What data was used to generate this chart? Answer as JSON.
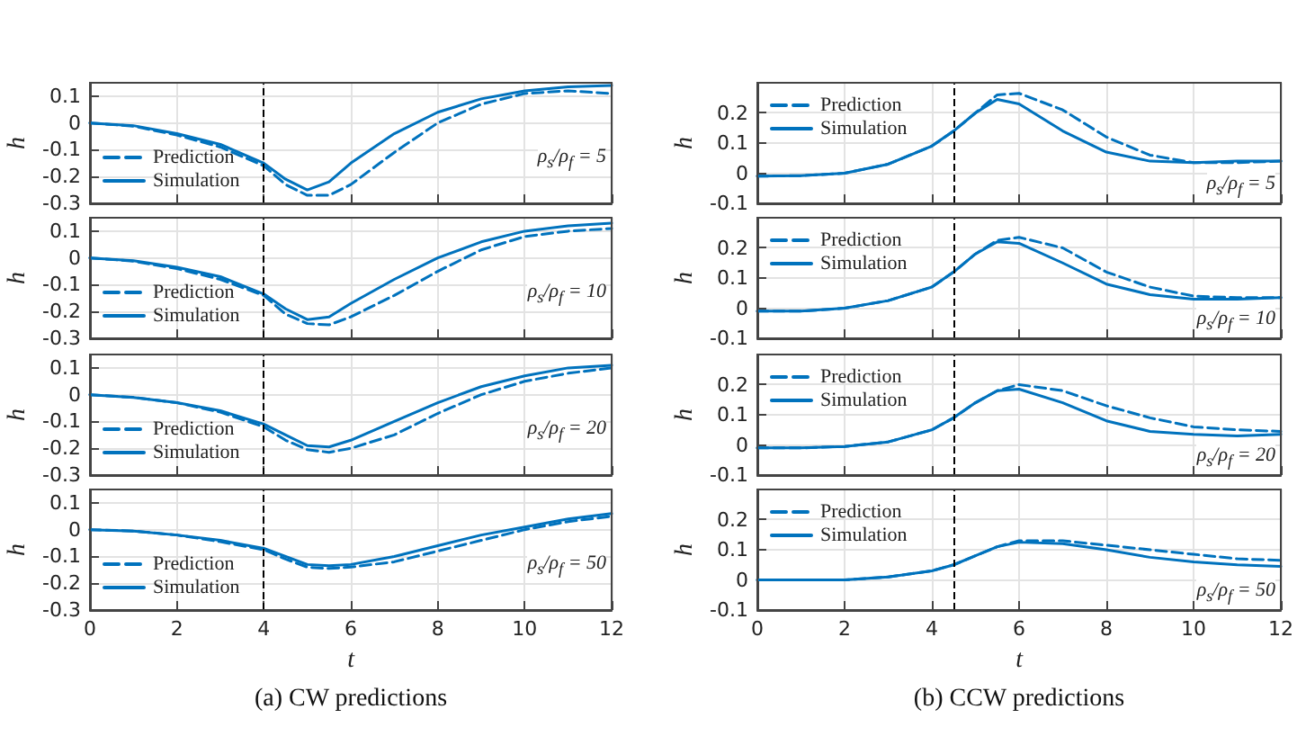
{
  "chart_data": [
    {
      "type": "line",
      "x": [
        0,
        1,
        2,
        3,
        4,
        4.5,
        5,
        5.5,
        6,
        7,
        8,
        9,
        10,
        11,
        12
      ],
      "ylabel": "h",
      "xlim": [
        0,
        12
      ],
      "xticks": [
        0,
        2,
        4,
        6,
        8,
        10,
        12
      ],
      "ylim": [
        -0.3,
        0.15
      ],
      "yticks": [
        -0.3,
        -0.2,
        -0.1,
        0,
        0.1
      ],
      "tick_labels": "y",
      "grid": true,
      "legend": "bottom left",
      "marker": "none",
      "annotations": [
        "ρ$_{s}$/ρ$_{f}$ = 5"
      ],
      "ref_lines": [
        {
          "axis": "x",
          "value": 4,
          "color": "#000000",
          "line_style": "dashed"
        }
      ],
      "series": [
        {
          "name": "Prediction",
          "color": "#0072bd",
          "line_style": "dashed",
          "values": [
            0,
            -0.012,
            -0.045,
            -0.09,
            -0.16,
            -0.23,
            -0.27,
            -0.27,
            -0.23,
            -0.11,
            0.0,
            0.07,
            0.11,
            0.12,
            0.11
          ]
        },
        {
          "name": "Simulation",
          "color": "#0072bd",
          "line_style": "solid",
          "values": [
            0,
            -0.01,
            -0.04,
            -0.08,
            -0.15,
            -0.21,
            -0.25,
            -0.22,
            -0.15,
            -0.04,
            0.04,
            0.09,
            0.12,
            0.135,
            0.14
          ]
        }
      ]
    },
    {
      "type": "line",
      "x": [
        0,
        1,
        2,
        3,
        4,
        4.5,
        5,
        5.5,
        6,
        7,
        8,
        9,
        10,
        11,
        12
      ],
      "ylabel": "h",
      "xlim": [
        0,
        12
      ],
      "xticks": [
        0,
        2,
        4,
        6,
        8,
        10,
        12
      ],
      "ylim": [
        -0.1,
        0.3
      ],
      "yticks": [
        -0.1,
        0,
        0.1,
        0.2
      ],
      "tick_labels": "y",
      "grid": true,
      "legend": "top left",
      "marker": "none",
      "annotations": [
        "ρ$_{s}$/ρ$_{f}$ = 5"
      ],
      "ref_lines": [
        {
          "axis": "x",
          "value": 4.5,
          "color": "#000000",
          "line_style": "dashed"
        }
      ],
      "series": [
        {
          "name": "Prediction",
          "color": "#0072bd",
          "line_style": "dashed",
          "values": [
            -0.01,
            -0.008,
            0.0,
            0.03,
            0.09,
            0.14,
            0.2,
            0.26,
            0.265,
            0.21,
            0.12,
            0.06,
            0.035,
            0.035,
            0.04
          ]
        },
        {
          "name": "Simulation",
          "color": "#0072bd",
          "line_style": "solid",
          "values": [
            -0.01,
            -0.008,
            0.0,
            0.03,
            0.09,
            0.14,
            0.2,
            0.245,
            0.23,
            0.14,
            0.07,
            0.04,
            0.035,
            0.04,
            0.04
          ]
        }
      ]
    },
    {
      "type": "line",
      "x": [
        0,
        1,
        2,
        3,
        4,
        4.5,
        5,
        5.5,
        6,
        7,
        8,
        9,
        10,
        11,
        12
      ],
      "ylabel": "h",
      "xlim": [
        0,
        12
      ],
      "xticks": [
        0,
        2,
        4,
        6,
        8,
        10,
        12
      ],
      "ylim": [
        -0.3,
        0.15
      ],
      "yticks": [
        -0.3,
        -0.2,
        -0.1,
        0,
        0.1
      ],
      "tick_labels": "y",
      "grid": true,
      "legend": "bottom left",
      "marker": "none",
      "annotations": [
        "ρ$_{s}$/ρ$_{f}$ = 10"
      ],
      "ref_lines": [
        {
          "axis": "x",
          "value": 4,
          "color": "#000000",
          "line_style": "dashed"
        }
      ],
      "series": [
        {
          "name": "Prediction",
          "color": "#0072bd",
          "line_style": "dashed",
          "values": [
            0,
            -0.012,
            -0.04,
            -0.08,
            -0.14,
            -0.21,
            -0.245,
            -0.25,
            -0.22,
            -0.14,
            -0.05,
            0.03,
            0.08,
            0.1,
            0.11
          ]
        },
        {
          "name": "Simulation",
          "color": "#0072bd",
          "line_style": "solid",
          "values": [
            0,
            -0.01,
            -0.035,
            -0.07,
            -0.135,
            -0.19,
            -0.23,
            -0.22,
            -0.17,
            -0.08,
            0.0,
            0.06,
            0.1,
            0.12,
            0.13
          ]
        }
      ]
    },
    {
      "type": "line",
      "x": [
        0,
        1,
        2,
        3,
        4,
        4.5,
        5,
        5.5,
        6,
        7,
        8,
        9,
        10,
        11,
        12
      ],
      "ylabel": "h",
      "xlim": [
        0,
        12
      ],
      "xticks": [
        0,
        2,
        4,
        6,
        8,
        10,
        12
      ],
      "ylim": [
        -0.1,
        0.3
      ],
      "yticks": [
        -0.1,
        0,
        0.1,
        0.2
      ],
      "tick_labels": "y",
      "grid": true,
      "legend": "top left",
      "marker": "none",
      "annotations": [
        "ρ$_{s}$/ρ$_{f}$ = 10"
      ],
      "ref_lines": [
        {
          "axis": "x",
          "value": 4.5,
          "color": "#000000",
          "line_style": "dashed"
        }
      ],
      "series": [
        {
          "name": "Prediction",
          "color": "#0072bd",
          "line_style": "dashed",
          "values": [
            -0.01,
            -0.01,
            0.0,
            0.025,
            0.07,
            0.12,
            0.18,
            0.225,
            0.235,
            0.2,
            0.12,
            0.07,
            0.04,
            0.035,
            0.035
          ]
        },
        {
          "name": "Simulation",
          "color": "#0072bd",
          "line_style": "solid",
          "values": [
            -0.01,
            -0.01,
            0.0,
            0.025,
            0.07,
            0.12,
            0.18,
            0.22,
            0.215,
            0.15,
            0.08,
            0.045,
            0.03,
            0.03,
            0.035
          ]
        }
      ]
    },
    {
      "type": "line",
      "x": [
        0,
        1,
        2,
        3,
        4,
        4.5,
        5,
        5.5,
        6,
        7,
        8,
        9,
        10,
        11,
        12
      ],
      "ylabel": "h",
      "xlim": [
        0,
        12
      ],
      "xticks": [
        0,
        2,
        4,
        6,
        8,
        10,
        12
      ],
      "ylim": [
        -0.3,
        0.15
      ],
      "yticks": [
        -0.3,
        -0.2,
        -0.1,
        0,
        0.1
      ],
      "tick_labels": "y",
      "grid": true,
      "legend": "bottom left",
      "marker": "none",
      "annotations": [
        "ρ$_{s}$/ρ$_{f}$ = 20"
      ],
      "ref_lines": [
        {
          "axis": "x",
          "value": 4,
          "color": "#000000",
          "line_style": "dashed"
        }
      ],
      "series": [
        {
          "name": "Prediction",
          "color": "#0072bd",
          "line_style": "dashed",
          "values": [
            0,
            -0.01,
            -0.03,
            -0.065,
            -0.12,
            -0.17,
            -0.205,
            -0.215,
            -0.2,
            -0.15,
            -0.07,
            0.0,
            0.05,
            0.08,
            0.1
          ]
        },
        {
          "name": "Simulation",
          "color": "#0072bd",
          "line_style": "solid",
          "values": [
            0,
            -0.01,
            -0.03,
            -0.06,
            -0.11,
            -0.15,
            -0.19,
            -0.195,
            -0.17,
            -0.1,
            -0.03,
            0.03,
            0.07,
            0.1,
            0.11
          ]
        }
      ]
    },
    {
      "type": "line",
      "x": [
        0,
        1,
        2,
        3,
        4,
        4.5,
        5,
        5.5,
        6,
        7,
        8,
        9,
        10,
        11,
        12
      ],
      "ylabel": "h",
      "xlim": [
        0,
        12
      ],
      "xticks": [
        0,
        2,
        4,
        6,
        8,
        10,
        12
      ],
      "ylim": [
        -0.1,
        0.3
      ],
      "yticks": [
        -0.1,
        0,
        0.1,
        0.2
      ],
      "tick_labels": "y",
      "grid": true,
      "legend": "top left",
      "marker": "none",
      "annotations": [
        "ρ$_{s}$/ρ$_{f}$ = 20"
      ],
      "ref_lines": [
        {
          "axis": "x",
          "value": 4.5,
          "color": "#000000",
          "line_style": "dashed"
        }
      ],
      "series": [
        {
          "name": "Prediction",
          "color": "#0072bd",
          "line_style": "dashed",
          "values": [
            -0.01,
            -0.01,
            -0.005,
            0.01,
            0.05,
            0.09,
            0.14,
            0.18,
            0.2,
            0.18,
            0.13,
            0.09,
            0.06,
            0.05,
            0.045
          ]
        },
        {
          "name": "Simulation",
          "color": "#0072bd",
          "line_style": "solid",
          "values": [
            -0.01,
            -0.01,
            -0.005,
            0.01,
            0.05,
            0.09,
            0.14,
            0.18,
            0.185,
            0.14,
            0.08,
            0.045,
            0.035,
            0.03,
            0.035
          ]
        }
      ]
    },
    {
      "type": "line",
      "x": [
        0,
        1,
        2,
        3,
        4,
        4.5,
        5,
        5.5,
        6,
        7,
        8,
        9,
        10,
        11,
        12
      ],
      "ylabel": "h",
      "xlabel": "t",
      "xlim": [
        0,
        12
      ],
      "xticks": [
        0,
        2,
        4,
        6,
        8,
        10,
        12
      ],
      "ylim": [
        -0.3,
        0.15
      ],
      "yticks": [
        -0.3,
        -0.2,
        -0.1,
        0,
        0.1
      ],
      "grid": true,
      "legend": "bottom left",
      "marker": "none",
      "annotations": [
        "ρ$_{s}$/ρ$_{f}$ = 50",
        "(a) CW predictions"
      ],
      "ref_lines": [
        {
          "axis": "x",
          "value": 4,
          "color": "#000000",
          "line_style": "dashed"
        }
      ],
      "series": [
        {
          "name": "Prediction",
          "color": "#0072bd",
          "line_style": "dashed",
          "values": [
            0,
            -0.005,
            -0.02,
            -0.045,
            -0.075,
            -0.11,
            -0.14,
            -0.145,
            -0.14,
            -0.12,
            -0.08,
            -0.04,
            0.0,
            0.03,
            0.05
          ]
        },
        {
          "name": "Simulation",
          "color": "#0072bd",
          "line_style": "solid",
          "values": [
            0,
            -0.005,
            -0.02,
            -0.04,
            -0.07,
            -0.1,
            -0.13,
            -0.135,
            -0.13,
            -0.1,
            -0.06,
            -0.02,
            0.01,
            0.04,
            0.06
          ]
        }
      ]
    },
    {
      "type": "line",
      "x": [
        0,
        1,
        2,
        3,
        4,
        4.5,
        5,
        5.5,
        6,
        7,
        8,
        9,
        10,
        11,
        12
      ],
      "ylabel": "h",
      "xlabel": "t",
      "xlim": [
        0,
        12
      ],
      "xticks": [
        0,
        2,
        4,
        6,
        8,
        10,
        12
      ],
      "ylim": [
        -0.1,
        0.3
      ],
      "yticks": [
        -0.1,
        0,
        0.1,
        0.2
      ],
      "grid": true,
      "legend": "top left",
      "marker": "none",
      "annotations": [
        "ρ$_{s}$/ρ$_{f}$ = 50",
        "(b) CCW predictions"
      ],
      "ref_lines": [
        {
          "axis": "x",
          "value": 4.5,
          "color": "#000000",
          "line_style": "dashed"
        }
      ],
      "series": [
        {
          "name": "Prediction",
          "color": "#0072bd",
          "line_style": "dashed",
          "values": [
            0,
            0,
            0,
            0.01,
            0.03,
            0.05,
            0.08,
            0.11,
            0.13,
            0.13,
            0.115,
            0.1,
            0.085,
            0.07,
            0.065
          ]
        },
        {
          "name": "Simulation",
          "color": "#0072bd",
          "line_style": "solid",
          "values": [
            0,
            0,
            0,
            0.01,
            0.03,
            0.05,
            0.08,
            0.11,
            0.125,
            0.12,
            0.1,
            0.075,
            0.06,
            0.05,
            0.045
          ]
        }
      ]
    }
  ]
}
